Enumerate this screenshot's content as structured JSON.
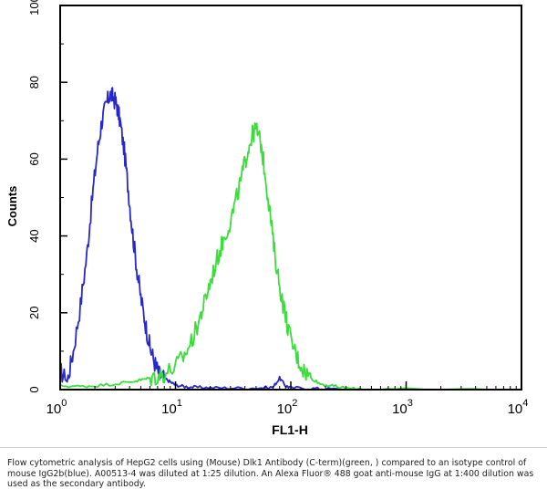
{
  "chart_data": {
    "type": "line",
    "xscale": "log",
    "xlim": [
      1,
      10000
    ],
    "ylim": [
      0,
      100
    ],
    "xlabel": "FL1-H",
    "ylabel": "Counts",
    "grid": false,
    "x_ticks": [
      {
        "value": 1,
        "base": "10",
        "exp": "0"
      },
      {
        "value": 10,
        "base": "10",
        "exp": "1"
      },
      {
        "value": 100,
        "base": "10",
        "exp": "2"
      },
      {
        "value": 1000,
        "base": "10",
        "exp": "3"
      },
      {
        "value": 10000,
        "base": "10",
        "exp": "4"
      }
    ],
    "y_ticks": [
      "0",
      "20",
      "40",
      "60",
      "80",
      "100"
    ],
    "series": [
      {
        "color": "#2828c8",
        "x": [
          1.0,
          1.15,
          1.3,
          1.5,
          1.7,
          1.9,
          2.1,
          2.3,
          2.5,
          2.7,
          2.9,
          3.1,
          3.3,
          3.6,
          3.9,
          4.2,
          4.6,
          5.0,
          5.5,
          6.0,
          6.6,
          7.2,
          8.0,
          9.0,
          10.0,
          12,
          15,
          20,
          30,
          50,
          70,
          80,
          90,
          100,
          150,
          200,
          300
        ],
        "values": [
          5,
          2,
          10,
          22,
          35,
          50,
          62,
          70,
          74,
          77,
          76,
          74,
          70,
          62,
          52,
          42,
          32,
          24,
          17,
          11,
          7,
          4,
          3,
          2,
          1.2,
          0.8,
          0.6,
          0.5,
          0.4,
          0.4,
          0.6,
          3,
          1,
          0.5,
          0.3,
          0.2,
          0
        ]
      },
      {
        "color": "#3cdc3c",
        "x": [
          1.0,
          1.5,
          2,
          3,
          4,
          5,
          6,
          7,
          8,
          10,
          12,
          14,
          16,
          18,
          20,
          23,
          26,
          30,
          34,
          38,
          42,
          46,
          50,
          55,
          60,
          66,
          72,
          80,
          90,
          100,
          115,
          130,
          150,
          180,
          220,
          280,
          350,
          500,
          1000,
          10000
        ],
        "values": [
          1,
          0.8,
          1.0,
          1.5,
          2,
          2.5,
          3,
          3.5,
          4,
          6,
          9,
          13,
          18,
          23,
          28,
          34,
          39,
          44,
          50,
          56,
          62,
          66,
          68,
          64,
          56,
          46,
          36,
          27,
          19,
          13,
          8,
          5,
          3,
          1.5,
          1,
          0.5,
          0.2,
          0.1,
          0,
          0
        ]
      }
    ]
  },
  "caption": "Flow cytometric analysis of HepG2 cells using (Mouse) Dlk1 Antibody (C-term)(green, ) compared to an isotype control of mouse IgG2b(blue). A00513-4 was diluted at 1:25 dilution. An Alexa Fluor® 488 goat anti-mouse IgG at 1:400 dilution was used as the secondary antibody."
}
